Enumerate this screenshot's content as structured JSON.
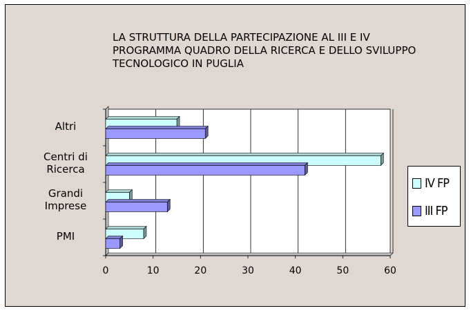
{
  "chart_data": {
    "type": "bar",
    "orientation": "horizontal",
    "title": "LA STRUTTURA DELLA PARTECIPAZIONE AL III E IV\nPROGRAMMA QUADRO DELLA RICERCA E DELLO SVILUPPO\nTECNOLOGICO IN PUGLIA",
    "categories": [
      "Altri",
      "Centri di\nRicerca",
      "Grandi\nImprese",
      "PMI"
    ],
    "series": [
      {
        "name": "IV FP",
        "color": "#ccffff",
        "values": [
          15,
          58,
          5,
          8
        ]
      },
      {
        "name": "III FP",
        "color": "#9999ff",
        "values": [
          21,
          42,
          13,
          3
        ]
      }
    ],
    "xlim": [
      0,
      60
    ],
    "xticks": [
      "0",
      "10",
      "20",
      "30",
      "40",
      "50",
      "60"
    ],
    "grid": true,
    "legend_position": "right"
  }
}
